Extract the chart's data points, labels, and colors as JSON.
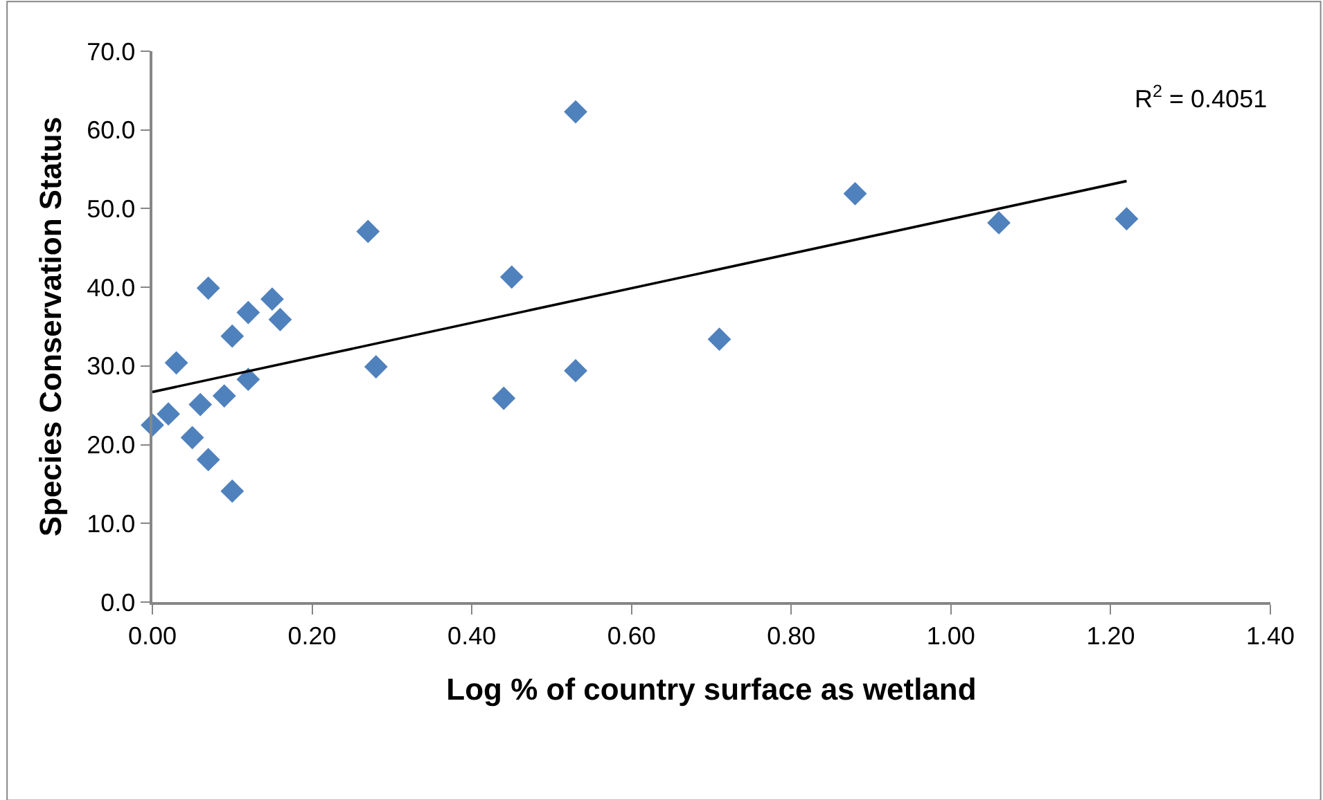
{
  "chart_data": {
    "type": "scatter",
    "xlabel": "Log % of country surface as wetland",
    "ylabel": "Species Conservation Status",
    "annotations": [
      "R$^{2}$ = 0.4051"
    ],
    "series": [
      {
        "color": "#4f81bd",
        "x": [
          0.0,
          0.02,
          0.03,
          0.05,
          0.06,
          0.07,
          0.07,
          0.09,
          0.1,
          0.1,
          0.12,
          0.12,
          0.15,
          0.16,
          0.27,
          0.28,
          0.44,
          0.45,
          0.53,
          0.53,
          0.71,
          0.88,
          1.06,
          1.22
        ],
        "values": [
          22.5,
          23.9,
          30.4,
          20.9,
          25.1,
          39.9,
          18.1,
          26.2,
          14.1,
          33.8,
          28.3,
          36.8,
          38.5,
          35.9,
          47.1,
          29.9,
          25.9,
          41.3,
          62.3,
          29.4,
          33.4,
          51.9,
          48.2,
          48.7
        ]
      },
      {
        "type": "line",
        "color": "#000000",
        "marker": "none",
        "x": [
          0.0,
          1.22
        ],
        "values": [
          26.7,
          53.5
        ]
      }
    ],
    "xlim": [
      0,
      1.4
    ],
    "xticks": [
      {
        "value": 0,
        "label": "0.00"
      },
      {
        "value": 0.2,
        "label": "0.20"
      },
      {
        "value": 0.4,
        "label": "0.40"
      },
      {
        "value": 0.6,
        "label": "0.60"
      },
      {
        "value": 0.8,
        "label": "0.80"
      },
      {
        "value": 1.0,
        "label": "1.00"
      },
      {
        "value": 1.2,
        "label": "1.20"
      },
      {
        "value": 1.4,
        "label": "1.40"
      }
    ],
    "ylim": [
      0,
      70
    ],
    "yticks": [
      {
        "value": 0,
        "label": "0.0"
      },
      {
        "value": 10,
        "label": "10.0"
      },
      {
        "value": 20,
        "label": "20.0"
      },
      {
        "value": 30,
        "label": "30.0"
      },
      {
        "value": 40,
        "label": "40.0"
      },
      {
        "value": 50,
        "label": "50.0"
      },
      {
        "value": 60,
        "label": "60.0"
      },
      {
        "value": 70,
        "label": "70.0"
      }
    ],
    "marker": "diamond"
  }
}
